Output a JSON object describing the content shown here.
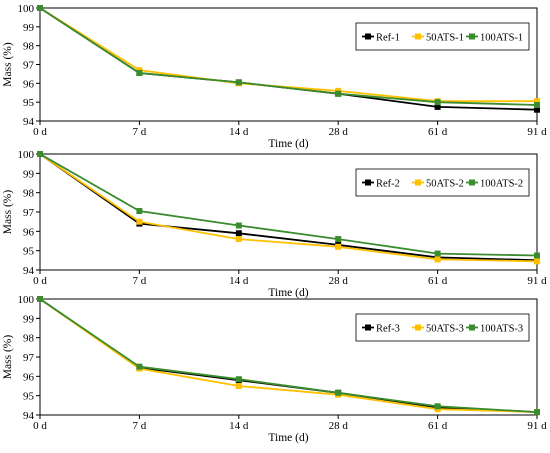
{
  "chart_data": [
    {
      "type": "line",
      "categories": [
        "0 d",
        "7 d",
        "14 d",
        "28 d",
        "61 d",
        "91 d"
      ],
      "xlabel": "Time (d)",
      "ylabel": "Mass (%)",
      "ylim": [
        94,
        100
      ],
      "yticks": [
        "94",
        "95",
        "96",
        "97",
        "98",
        "99",
        "100"
      ],
      "legend_position": "top-right",
      "series": [
        {
          "name": "Ref-1",
          "color": "#000000",
          "values": [
            100,
            96.55,
            96.05,
            95.45,
            94.75,
            94.6
          ]
        },
        {
          "name": "50ATS-1",
          "color": "#FFC000",
          "values": [
            100,
            96.7,
            96.0,
            95.6,
            95.05,
            95.05
          ]
        },
        {
          "name": "100ATS-1",
          "color": "#3A8C2E",
          "values": [
            100,
            96.55,
            96.05,
            95.45,
            95.0,
            94.85
          ]
        }
      ]
    },
    {
      "type": "line",
      "categories": [
        "0 d",
        "7 d",
        "14 d",
        "28 d",
        "61 d",
        "91 d"
      ],
      "xlabel": "Time (d)",
      "ylabel": "Mass (%)",
      "ylim": [
        94,
        100
      ],
      "yticks": [
        "94",
        "95",
        "96",
        "97",
        "98",
        "99",
        "100"
      ],
      "legend_position": "top-right",
      "series": [
        {
          "name": "Ref-2",
          "color": "#000000",
          "values": [
            100,
            96.4,
            95.9,
            95.3,
            94.65,
            94.5
          ]
        },
        {
          "name": "50ATS-2",
          "color": "#FFC000",
          "values": [
            100,
            96.5,
            95.6,
            95.2,
            94.55,
            94.45
          ]
        },
        {
          "name": "100ATS-2",
          "color": "#3A8C2E",
          "values": [
            100,
            97.05,
            96.3,
            95.6,
            94.85,
            94.75
          ]
        }
      ]
    },
    {
      "type": "line",
      "categories": [
        "0 d",
        "7 d",
        "14 d",
        "28 d",
        "61 d",
        "91 d"
      ],
      "xlabel": "Time (d)",
      "ylabel": "Mass (%)",
      "ylim": [
        94,
        100
      ],
      "yticks": [
        "94",
        "95",
        "96",
        "97",
        "98",
        "99",
        "100"
      ],
      "legend_position": "top-right",
      "series": [
        {
          "name": "Ref-3",
          "color": "#000000",
          "values": [
            100,
            96.45,
            95.8,
            95.15,
            94.4,
            94.15
          ]
        },
        {
          "name": "50ATS-3",
          "color": "#FFC000",
          "values": [
            100,
            96.4,
            95.5,
            95.05,
            94.3,
            94.15
          ]
        },
        {
          "name": "100ATS-3",
          "color": "#3A8C2E",
          "values": [
            100,
            96.5,
            95.85,
            95.15,
            94.45,
            94.15
          ]
        }
      ]
    }
  ]
}
